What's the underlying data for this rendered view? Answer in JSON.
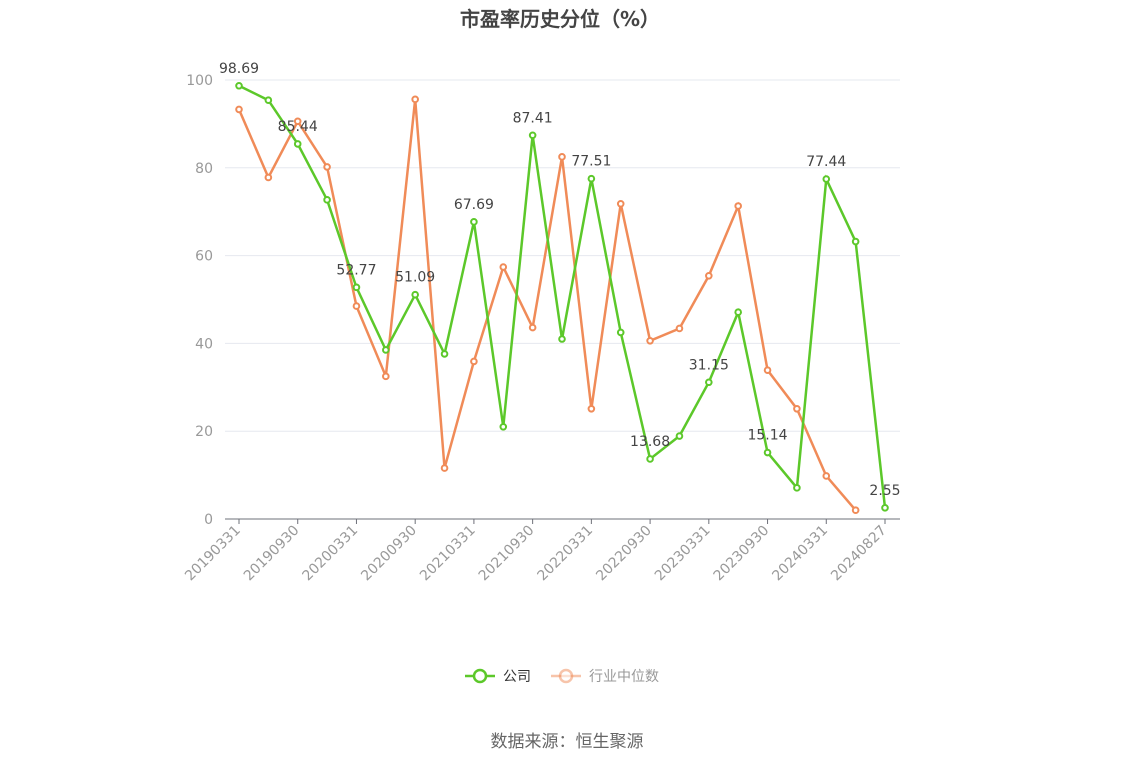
{
  "chart_data": {
    "type": "line",
    "title": "市盈率历史分位（%）",
    "source": "数据来源：恒生聚源",
    "categories": [
      "20190331",
      null,
      "20190930",
      null,
      "20200331",
      null,
      "20200930",
      null,
      "20210331",
      null,
      "20210930",
      null,
      "20220331",
      null,
      "20220930",
      null,
      "20230331",
      null,
      "20230930",
      null,
      "20240331",
      null,
      "20240827"
    ],
    "series": [
      {
        "name": "公司",
        "color": "#5cc82a",
        "labels_at": [
          0,
          2,
          4,
          6,
          8,
          10,
          12,
          14,
          16,
          18,
          20,
          22
        ],
        "values": [
          98.69,
          95.4,
          85.44,
          72.7,
          52.77,
          38.5,
          51.09,
          37.6,
          67.69,
          21.0,
          87.41,
          41.0,
          77.51,
          42.5,
          13.68,
          18.9,
          31.15,
          47.1,
          15.14,
          7.1,
          77.44,
          63.2,
          2.55
        ]
      },
      {
        "name": "行业中位数",
        "color": "#f08b58",
        "values": [
          93.3,
          77.8,
          90.6,
          80.2,
          48.5,
          32.5,
          95.6,
          11.6,
          35.9,
          57.4,
          43.6,
          82.5,
          25.1,
          71.8,
          40.6,
          43.4,
          55.4,
          71.3,
          33.9,
          25.1,
          9.8,
          2.0,
          null
        ]
      }
    ],
    "ylim": [
      0,
      100
    ],
    "yticks": [
      0,
      20,
      40,
      60,
      80,
      100
    ],
    "grid": true,
    "legend": "bottom"
  }
}
